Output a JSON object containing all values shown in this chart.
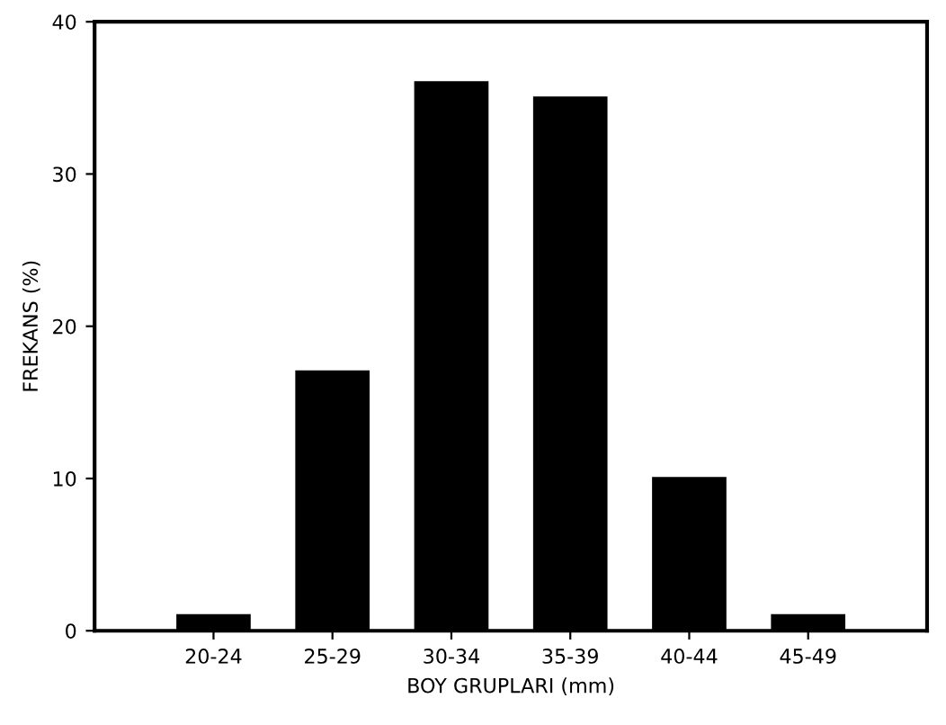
{
  "chart_data": {
    "type": "bar",
    "xlabel": "BOY GRUPLARI (mm)",
    "ylabel": "FREKANS (%)",
    "categories": [
      "20-24",
      "25-29",
      "30-34",
      "35-39",
      "40-44",
      "45-49"
    ],
    "values": [
      1,
      17,
      36,
      35,
      10,
      1
    ],
    "color": "#000000",
    "ylim": [
      0,
      40
    ],
    "yticks": [
      0,
      10,
      20,
      30,
      40
    ],
    "grid": false
  }
}
